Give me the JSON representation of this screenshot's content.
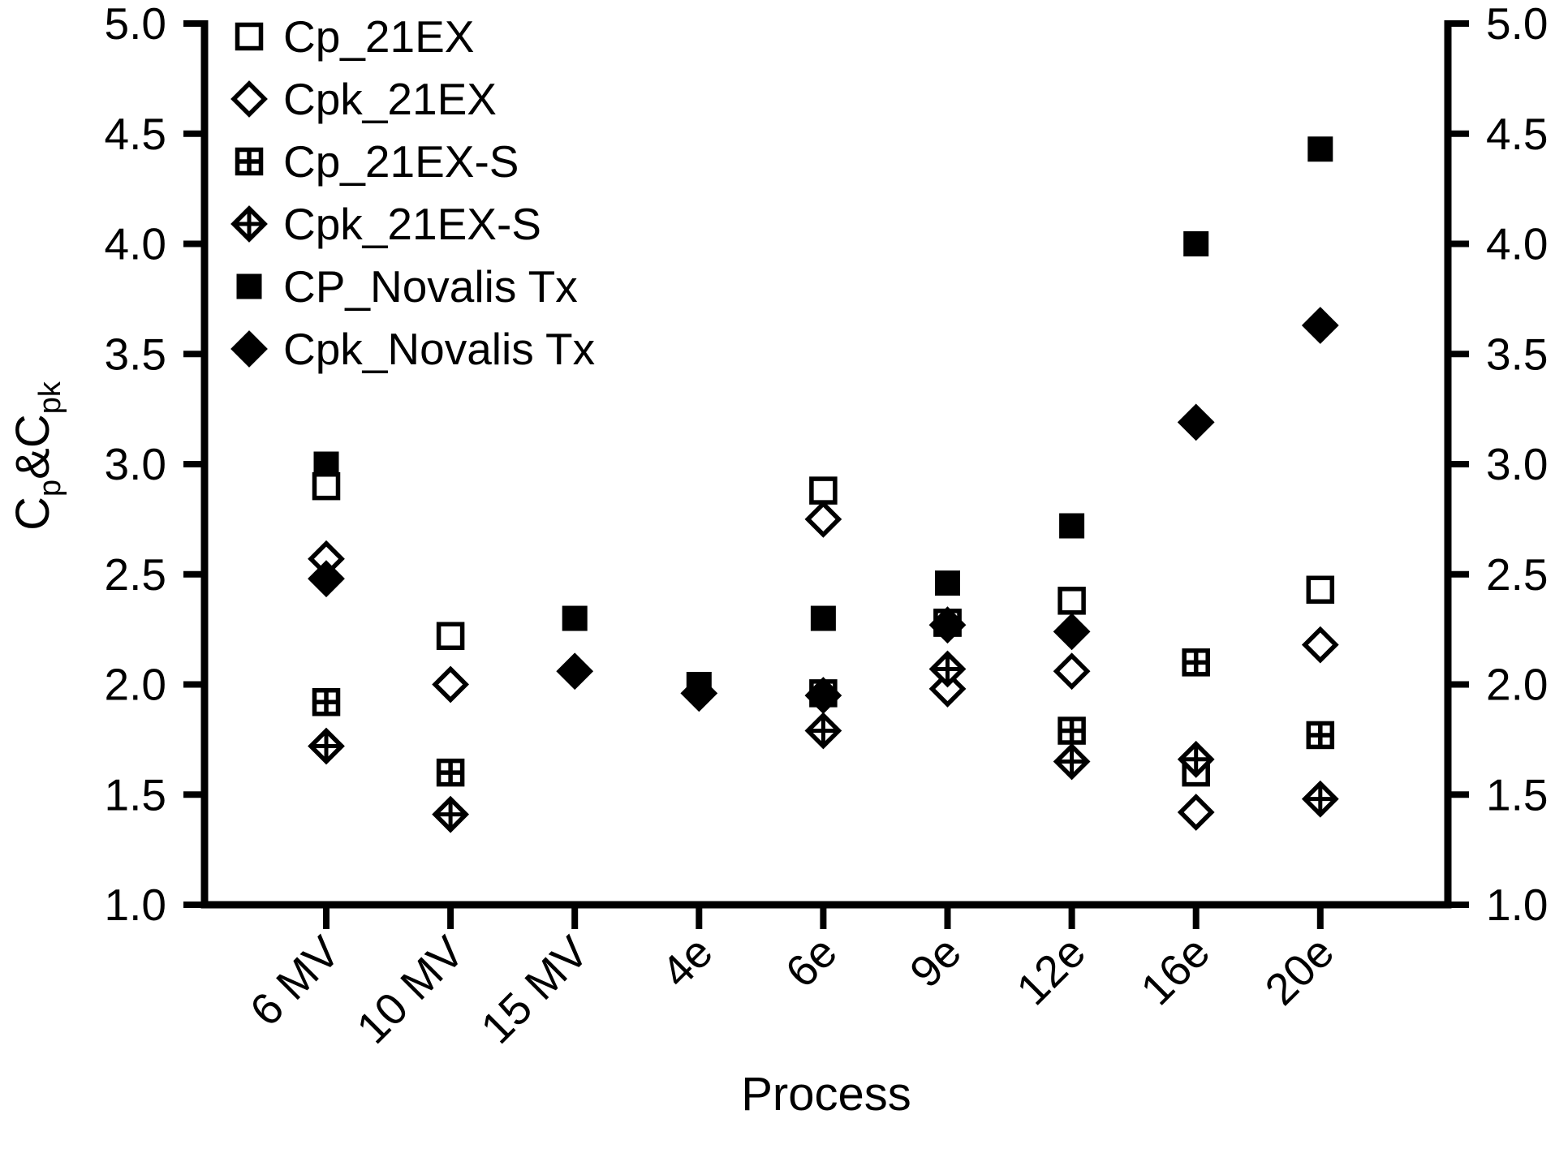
{
  "figure": {
    "background_color": "#ffffff",
    "foreground_color": "#000000"
  },
  "chart_data": {
    "type": "scatter",
    "title": "",
    "xlabel": "Process",
    "ylabel": "Cp&Cpk",
    "ylabel_parts": [
      {
        "text": "C",
        "sub": false
      },
      {
        "text": "p",
        "sub": true
      },
      {
        "text": "&",
        "sub": false
      },
      {
        "text": "C",
        "sub": false
      },
      {
        "text": "pk",
        "sub": true
      }
    ],
    "categories": [
      "6 MV",
      "10 MV",
      "15 MV",
      "4e",
      "6e",
      "9e",
      "12e",
      "16e",
      "20e"
    ],
    "y_ticks": [
      "5.0",
      "4.5",
      "4.0",
      "3.5",
      "3.0",
      "2.5",
      "2.0",
      "1.5",
      "1.0"
    ],
    "ylim": [
      1.0,
      5.0
    ],
    "grid": false,
    "legend_position": "top-left-inside",
    "y_axis_right_mirror": true,
    "marker_color": "#000000",
    "series": [
      {
        "name": "Cp_21EX",
        "marker": "open-square",
        "values": [
          2.9,
          2.22,
          null,
          null,
          2.88,
          2.28,
          2.38,
          1.6,
          2.43
        ]
      },
      {
        "name": "Cpk_21EX",
        "marker": "open-diamond",
        "values": [
          2.57,
          2.0,
          null,
          null,
          2.75,
          1.98,
          2.06,
          1.42,
          2.18
        ]
      },
      {
        "name": "Cp_21EX-S",
        "marker": "grid-square",
        "values": [
          1.92,
          1.6,
          null,
          null,
          1.96,
          2.28,
          1.79,
          2.1,
          1.77
        ]
      },
      {
        "name": "Cpk_21EX-S",
        "marker": "cross-diamond",
        "values": [
          1.72,
          1.41,
          null,
          null,
          1.79,
          2.07,
          1.65,
          1.66,
          1.48
        ]
      },
      {
        "name": "CP_Novalis Tx",
        "marker": "filled-square",
        "values": [
          3.0,
          null,
          2.3,
          2.0,
          2.3,
          2.46,
          2.72,
          4.0,
          4.43
        ]
      },
      {
        "name": "Cpk_Novalis Tx",
        "marker": "filled-diamond",
        "values": [
          2.48,
          null,
          2.06,
          1.96,
          1.95,
          2.27,
          2.24,
          3.19,
          3.63
        ]
      }
    ]
  }
}
